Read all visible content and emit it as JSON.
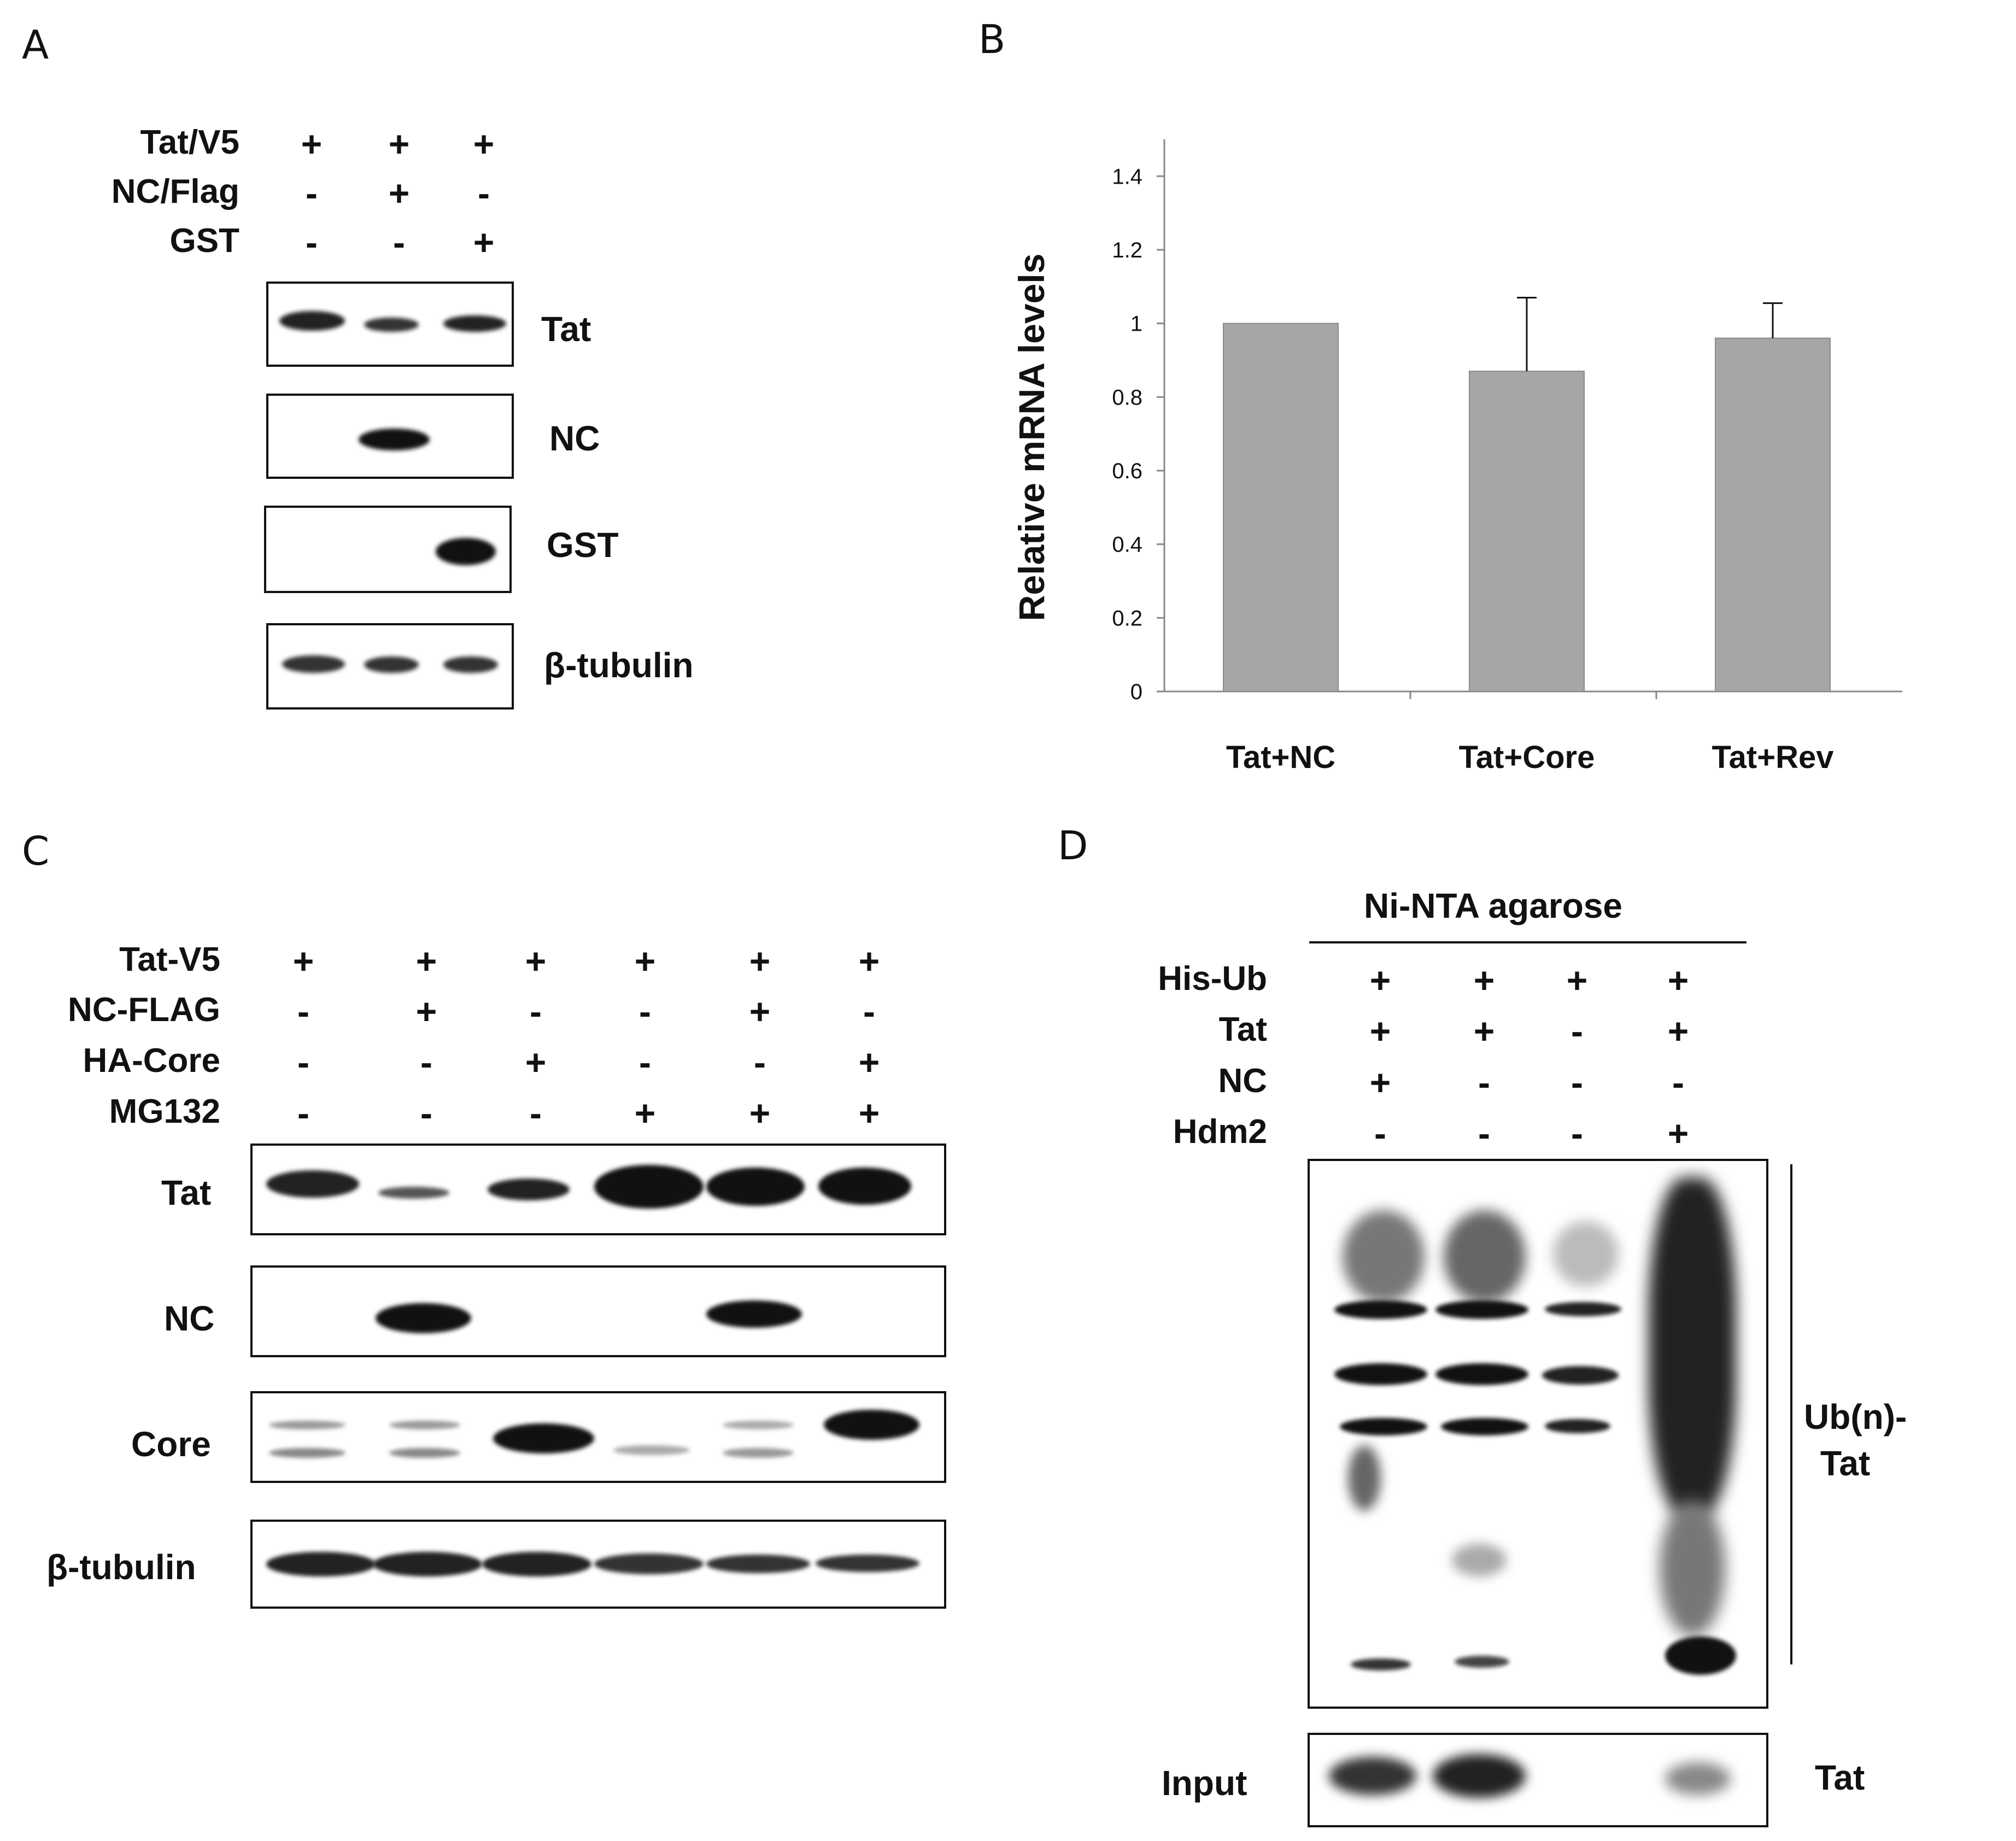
{
  "panels": {
    "a": "A",
    "b": "B",
    "c": "C",
    "d": "D"
  },
  "panel_a": {
    "rows": [
      {
        "label": "Tat/V5",
        "signs": [
          "+",
          "+",
          "+"
        ]
      },
      {
        "label": "NC/Flag",
        "signs": [
          "-",
          "+",
          "-"
        ]
      },
      {
        "label": "GST",
        "signs": [
          "-",
          "-",
          "+"
        ]
      }
    ],
    "blots": [
      "Tat",
      "NC",
      "GST",
      "β-tubulin"
    ]
  },
  "panel_c": {
    "rows": [
      {
        "label": "Tat-V5",
        "signs": [
          "+",
          "+",
          "+",
          "+",
          "+",
          "+"
        ]
      },
      {
        "label": "NC-FLAG",
        "signs": [
          "-",
          "+",
          "-",
          "-",
          "+",
          "-"
        ]
      },
      {
        "label": "HA-Core",
        "signs": [
          "-",
          "-",
          "+",
          "-",
          "-",
          "+"
        ]
      },
      {
        "label": "MG132",
        "signs": [
          "-",
          "-",
          "-",
          "+",
          "+",
          "+"
        ]
      }
    ],
    "blots": [
      "Tat",
      "NC",
      "Core",
      "β-tubulin"
    ]
  },
  "panel_d": {
    "header": "Ni-NTA agarose",
    "rows": [
      {
        "label": "His-Ub",
        "signs": [
          "+",
          "+",
          "+",
          "+"
        ]
      },
      {
        "label": "Tat",
        "signs": [
          "+",
          "+",
          "-",
          "+"
        ]
      },
      {
        "label": "NC",
        "signs": [
          "+",
          "-",
          "-",
          "-"
        ]
      },
      {
        "label": "Hdm2",
        "signs": [
          "-",
          "-",
          "-",
          "+"
        ]
      }
    ],
    "side_label_line1": "Ub(n)-",
    "side_label_line2": "Tat",
    "input_label": "Input",
    "input_right_label": "Tat"
  },
  "chart_data": {
    "type": "bar",
    "categories": [
      "Tat+NC",
      "Tat+Core",
      "Tat+Rev"
    ],
    "values": [
      1.0,
      0.87,
      0.96
    ],
    "errors": [
      0,
      0.2,
      0.095
    ],
    "ylabel": "Relative mRNA levels",
    "xlabel": "",
    "title": "",
    "ylim": [
      0,
      1.5
    ],
    "yticks": [
      0,
      0.2,
      0.4,
      0.6,
      0.8,
      1,
      1.2,
      1.4
    ],
    "bar_color": "#a6a6a6",
    "grid": false
  }
}
